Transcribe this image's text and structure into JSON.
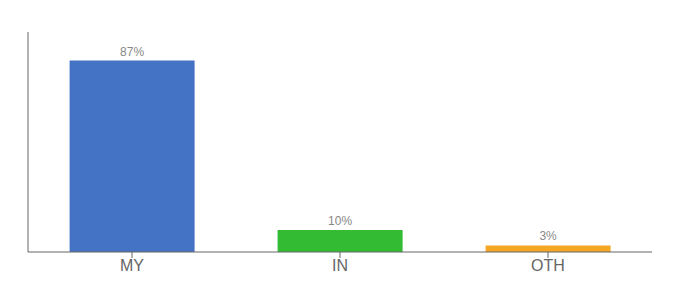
{
  "chart_data": {
    "type": "bar",
    "categories": [
      "MY",
      "IN",
      "OTH"
    ],
    "values": [
      87,
      10,
      3
    ],
    "value_labels": [
      "87%",
      "10%",
      "3%"
    ],
    "colors": [
      "#4472c4",
      "#33bb33",
      "#f5a623"
    ],
    "ylim": [
      0,
      100
    ],
    "data_labels": true,
    "tick_labels": "x",
    "grid": false
  }
}
